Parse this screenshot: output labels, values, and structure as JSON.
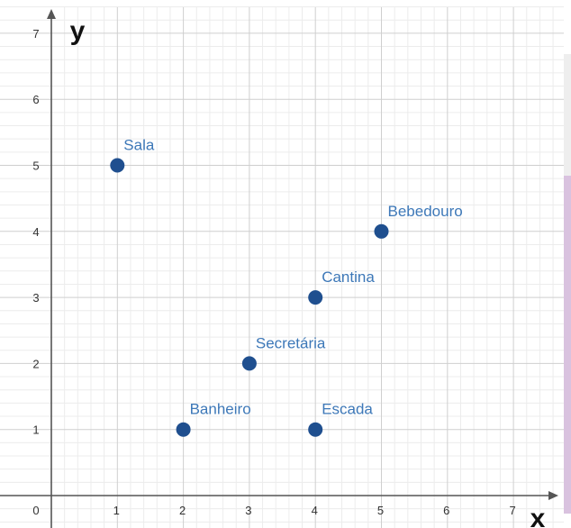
{
  "chart_data": {
    "type": "scatter",
    "xlabel": "x",
    "ylabel": "y",
    "xlim": [
      0,
      7.5
    ],
    "ylim": [
      0,
      7.2
    ],
    "x_ticks": [
      "0",
      "1",
      "2",
      "3",
      "4",
      "5",
      "6",
      "7"
    ],
    "y_ticks": [
      "1",
      "2",
      "3",
      "4",
      "5",
      "6",
      "7"
    ],
    "grid": true,
    "points": [
      {
        "label": "Sala",
        "x": 1,
        "y": 5
      },
      {
        "label": "Bebedouro",
        "x": 5,
        "y": 4
      },
      {
        "label": "Cantina",
        "x": 4,
        "y": 3
      },
      {
        "label": "Secretária",
        "x": 3,
        "y": 2
      },
      {
        "label": "Banheiro",
        "x": 2,
        "y": 1
      },
      {
        "label": "Escada",
        "x": 4,
        "y": 1
      }
    ]
  },
  "colors": {
    "point": "#1f4f8f",
    "label": "#3d78b8",
    "grid_major": "#cfcfcf",
    "grid_minor": "#ececec",
    "axis": "#555555",
    "tick_text": "#333333",
    "axis_title": "#111111"
  }
}
